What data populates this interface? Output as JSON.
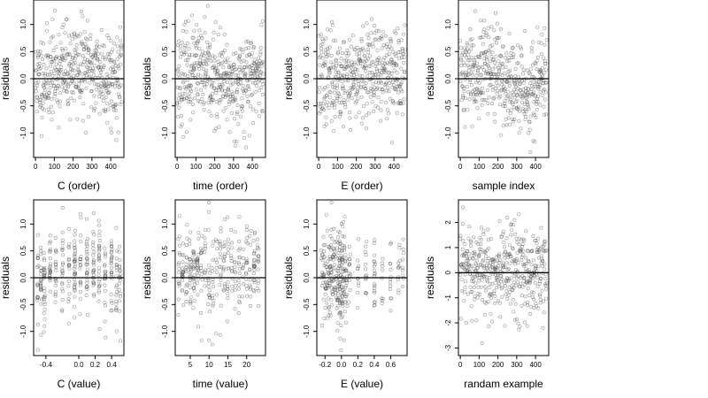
{
  "chart_data": [
    {
      "type": "scatter",
      "xlabel": "C (order)",
      "ylabel": "residuals",
      "xlim": [
        -10,
        470
      ],
      "ylim": [
        -1.45,
        1.45
      ],
      "xticks": [
        0,
        100,
        200,
        300,
        400
      ],
      "xticklabels": [
        "0",
        "100",
        "200",
        "300",
        "400"
      ],
      "yticks": [
        -1,
        -0.5,
        0,
        0.5,
        1
      ],
      "yticklabels": [
        "-1.0",
        "-0.5",
        "0.0",
        "0.5",
        "1.0"
      ],
      "hline": 0,
      "pattern": "order_hump",
      "seed": 11
    },
    {
      "type": "scatter",
      "xlabel": "time (order)",
      "ylabel": "residuals",
      "xlim": [
        -10,
        470
      ],
      "ylim": [
        -1.45,
        1.45
      ],
      "xticks": [
        0,
        100,
        200,
        300,
        400
      ],
      "xticklabels": [
        "0",
        "100",
        "200",
        "300",
        "400"
      ],
      "yticks": [
        -1,
        -0.5,
        0,
        0.5,
        1
      ],
      "yticklabels": [
        "-1.0",
        "-0.5",
        "0.0",
        "0.5",
        "1.0"
      ],
      "hline": 0,
      "pattern": "order_flat",
      "seed": 23
    },
    {
      "type": "scatter",
      "xlabel": "E (order)",
      "ylabel": "residuals",
      "xlim": [
        -10,
        470
      ],
      "ylim": [
        -1.45,
        1.45
      ],
      "xticks": [
        0,
        100,
        200,
        300,
        400
      ],
      "xticklabels": [
        "0",
        "100",
        "200",
        "300",
        "400"
      ],
      "yticks": [
        -1,
        -0.5,
        0,
        0.5,
        1
      ],
      "yticklabels": [
        "-1.0",
        "-0.5",
        "0.0",
        "0.5",
        "1.0"
      ],
      "hline": 0,
      "pattern": "order_up",
      "seed": 37
    },
    {
      "type": "scatter",
      "xlabel": "sample index",
      "ylabel": "residuals",
      "xlim": [
        -10,
        470
      ],
      "ylim": [
        -1.45,
        1.45
      ],
      "xticks": [
        0,
        100,
        200,
        300,
        400
      ],
      "xticklabels": [
        "0",
        "100",
        "200",
        "300",
        "400"
      ],
      "yticks": [
        -1,
        -0.5,
        0,
        0.5,
        1
      ],
      "yticklabels": [
        "-1.0",
        "-0.5",
        "0.0",
        "0.5",
        "1.0"
      ],
      "hline": 0,
      "pattern": "order_wave",
      "seed": 41
    },
    {
      "type": "scatter",
      "xlabel": "C (value)",
      "ylabel": "residuals",
      "xlim": [
        -0.55,
        0.55
      ],
      "ylim": [
        -1.45,
        1.45
      ],
      "xticks": [
        -0.4,
        0,
        0.2,
        0.4
      ],
      "xticklabels": [
        "-0.4",
        "0.0",
        "0.2",
        "0.4"
      ],
      "yticks": [
        -1,
        -0.5,
        0,
        0.5,
        1
      ],
      "yticklabels": [
        "-1.0",
        "-0.5",
        "0.0",
        "0.5",
        "1.0"
      ],
      "hline": 0,
      "pattern": "discrete_c",
      "seed": 53
    },
    {
      "type": "scatter",
      "xlabel": "time (value)",
      "ylabel": "residuals",
      "xlim": [
        1,
        25
      ],
      "ylim": [
        -1.45,
        1.45
      ],
      "xticks": [
        5,
        10,
        15,
        20
      ],
      "xticklabels": [
        "5",
        "10",
        "15",
        "20"
      ],
      "yticks": [
        -1,
        -0.5,
        0,
        0.5,
        1
      ],
      "yticklabels": [
        "-1.0",
        "-0.5",
        "0.0",
        "0.5",
        "1.0"
      ],
      "hline": 0,
      "pattern": "discrete_time",
      "seed": 67
    },
    {
      "type": "scatter",
      "xlabel": "E (value)",
      "ylabel": "residuals",
      "xlim": [
        -0.3,
        0.8
      ],
      "ylim": [
        -1.45,
        1.45
      ],
      "xticks": [
        -0.2,
        0,
        0.2,
        0.4,
        0.6
      ],
      "xticklabels": [
        "-0.2",
        "0.0",
        "0.2",
        "0.4",
        "0.6"
      ],
      "yticks": [
        -1,
        -0.5,
        0,
        0.5,
        1
      ],
      "yticklabels": [
        "-1.0",
        "-0.5",
        "0.0",
        "0.5",
        "1.0"
      ],
      "hline": 0,
      "pattern": "discrete_e",
      "seed": 79
    },
    {
      "type": "scatter",
      "xlabel": "randam example",
      "ylabel": "residuals",
      "xlim": [
        -10,
        470
      ],
      "ylim": [
        -3.3,
        2.9
      ],
      "xticks": [
        0,
        100,
        200,
        300,
        400
      ],
      "xticklabels": [
        "0",
        "100",
        "200",
        "300",
        "400"
      ],
      "yticks": [
        -3,
        -2,
        -1,
        0,
        1,
        2
      ],
      "yticklabels": [
        "-3",
        "-2",
        "-1",
        "0",
        "1",
        "2"
      ],
      "hline": 0,
      "pattern": "random",
      "seed": 97
    }
  ]
}
